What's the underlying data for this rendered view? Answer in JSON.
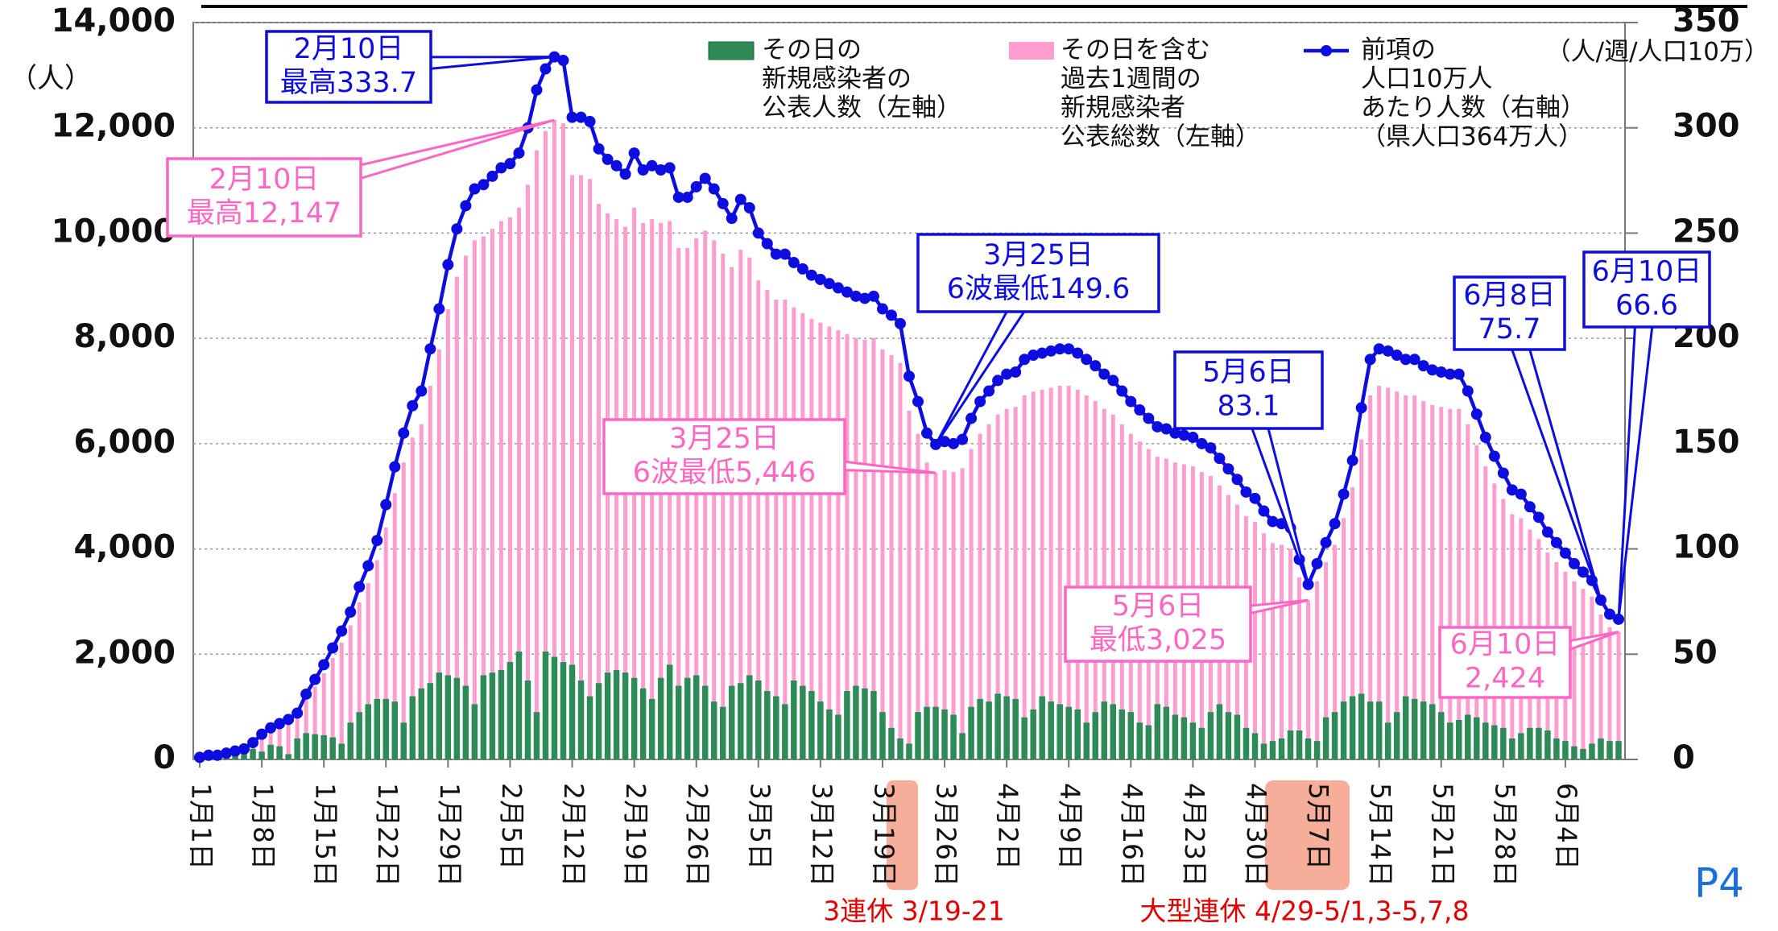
{
  "chart_data": {
    "type": "combo",
    "ylabel": "（人）",
    "y2label": "（人/週/人口10万）",
    "ylim": [
      0,
      14000
    ],
    "yticks": [
      0,
      {
        "value": 2000,
        "label": "2,000"
      },
      {
        "value": 4000,
        "label": "4,000"
      },
      {
        "value": 6000,
        "label": "6,000"
      },
      {
        "value": 8000,
        "label": "8,000"
      },
      {
        "value": 10000,
        "label": "10,000"
      },
      {
        "value": 12000,
        "label": "12,000"
      },
      {
        "value": 14000,
        "label": "14,000"
      }
    ],
    "y2lim": [
      0,
      350
    ],
    "y2ticks": [
      0,
      50,
      100,
      150,
      200,
      250,
      300,
      350
    ],
    "grid": true,
    "categories": [
      "1月1日",
      null,
      null,
      null,
      null,
      null,
      null,
      "1月8日",
      null,
      null,
      null,
      null,
      null,
      null,
      "1月15日",
      null,
      null,
      null,
      null,
      null,
      null,
      "1月22日",
      null,
      null,
      null,
      null,
      null,
      null,
      "1月29日",
      null,
      null,
      null,
      null,
      null,
      null,
      "2月5日",
      null,
      null,
      null,
      null,
      null,
      null,
      "2月12日",
      null,
      null,
      null,
      null,
      null,
      null,
      "2月19日",
      null,
      null,
      null,
      null,
      null,
      null,
      "2月26日",
      null,
      null,
      null,
      null,
      null,
      null,
      "3月5日",
      null,
      null,
      null,
      null,
      null,
      null,
      "3月12日",
      null,
      null,
      null,
      null,
      null,
      null,
      "3月19日",
      null,
      null,
      null,
      null,
      null,
      null,
      "3月26日",
      null,
      null,
      null,
      null,
      null,
      null,
      "4月2日",
      null,
      null,
      null,
      null,
      null,
      null,
      "4月9日",
      null,
      null,
      null,
      null,
      null,
      null,
      "4月16日",
      null,
      null,
      null,
      null,
      null,
      null,
      "4月23日",
      null,
      null,
      null,
      null,
      null,
      null,
      "4月30日",
      null,
      null,
      null,
      null,
      null,
      null,
      "5月7日",
      null,
      null,
      null,
      null,
      null,
      null,
      "5月14日",
      null,
      null,
      null,
      null,
      null,
      null,
      "5月21日",
      null,
      null,
      null,
      null,
      null,
      null,
      "5月28日",
      null,
      null,
      null,
      null,
      null,
      null,
      "6月4日",
      null,
      null,
      null,
      null,
      null,
      null
    ],
    "series": [
      {
        "name": [
          "その日の",
          "新規感染者の",
          "公表人数（左軸）"
        ],
        "type": "bar",
        "color": "#2e8b57",
        "values": [
          30,
          60,
          90,
          120,
          100,
          150,
          200,
          150,
          280,
          250,
          100,
          400,
          500,
          480,
          460,
          420,
          300,
          700,
          900,
          1050,
          1150,
          1150,
          1100,
          700,
          1200,
          1350,
          1450,
          1650,
          1600,
          1550,
          1400,
          1050,
          1600,
          1650,
          1700,
          1850,
          2050,
          1500,
          900,
          2050,
          1950,
          1850,
          1800,
          1500,
          1200,
          1450,
          1650,
          1700,
          1650,
          1550,
          1350,
          1150,
          1550,
          1800,
          1400,
          1550,
          1600,
          1400,
          1100,
          1000,
          1400,
          1450,
          1600,
          1500,
          1300,
          1200,
          1050,
          1500,
          1400,
          1300,
          1100,
          950,
          850,
          1300,
          1400,
          1350,
          1300,
          900,
          600,
          400,
          300,
          900,
          1000,
          1000,
          950,
          850,
          500,
          1000,
          1150,
          1100,
          1250,
          1200,
          1150,
          800,
          950,
          1200,
          1100,
          1050,
          1000,
          950,
          700,
          900,
          1100,
          1050,
          950,
          900,
          700,
          650,
          1050,
          1000,
          850,
          800,
          700,
          600,
          900,
          1050,
          900,
          850,
          600,
          500,
          300,
          350,
          400,
          550,
          550,
          400,
          350,
          800,
          900,
          1100,
          1200,
          1250,
          1100,
          1100,
          700,
          900,
          1200,
          1150,
          1100,
          1050,
          900,
          700,
          750,
          850,
          800,
          700,
          650,
          600,
          400,
          500,
          600,
          600,
          550,
          400,
          350,
          250,
          200,
          300,
          400,
          350,
          350
        ]
      },
      {
        "name": [
          "その日を含む",
          "過去1週間の",
          "新規感染者",
          "公表総数（左軸）"
        ],
        "type": "bar",
        "color": "#ff9dd0",
        "values": [
          36,
          73,
          73,
          109,
          146,
          182,
          291,
          437,
          546,
          619,
          692,
          801,
          1128,
          1383,
          1638,
          1929,
          2220,
          2548,
          2985,
          3349,
          3786,
          4404,
          5060,
          5642,
          6115,
          6370,
          7098,
          7790,
          8554,
          9173,
          9573,
          9864,
          9937,
          10083,
          10228,
          10301,
          10483,
          10920,
          11575,
          11939,
          12147,
          12085,
          11102,
          11102,
          11029,
          10556,
          10374,
          10265,
          10119,
          10483,
          10192,
          10265,
          10192,
          10228,
          9719,
          9719,
          9901,
          10046,
          9864,
          9610,
          9355,
          9682,
          9537,
          9100,
          8918,
          8736,
          8736,
          8590,
          8481,
          8372,
          8299,
          8226,
          8154,
          8081,
          8008,
          7972,
          8008,
          7790,
          7680,
          7535,
          6625,
          6188,
          5642,
          5446,
          5496,
          5460,
          5533,
          5897,
          6188,
          6370,
          6552,
          6661,
          6698,
          6916,
          6989,
          7025,
          7062,
          7098,
          7098,
          7025,
          6916,
          6807,
          6661,
          6552,
          6370,
          6188,
          6042,
          5897,
          5751,
          5715,
          5642,
          5606,
          5569,
          5460,
          5387,
          5205,
          5023,
          4841,
          4623,
          4514,
          4295,
          4113,
          4077,
          4004,
          3458,
          3025,
          3385,
          3749,
          4077,
          4586,
          5169,
          6079,
          6916,
          7098,
          7062,
          6989,
          6916,
          6916,
          6807,
          6734,
          6698,
          6661,
          6661,
          6370,
          5970,
          5569,
          5242,
          4950,
          4659,
          4586,
          4368,
          4186,
          3931,
          3749,
          3567,
          3385,
          3240,
          3094,
          2755,
          2512,
          2424
        ]
      },
      {
        "name": [
          "前項の",
          "人口10万人",
          "あたり人数（右軸）",
          "（県人口364万人）"
        ],
        "type": "line",
        "axis": "y2",
        "color": "#0d0de0",
        "values": [
          1,
          2,
          2,
          3,
          4,
          5,
          8,
          12,
          15,
          17,
          19,
          22,
          31,
          38,
          45,
          53,
          61,
          70,
          82,
          92,
          104,
          121,
          139,
          155,
          168,
          175,
          195,
          214,
          235,
          252,
          263,
          271,
          273,
          277,
          281,
          283,
          288,
          300,
          318,
          328,
          333.7,
          332,
          305,
          305,
          303,
          290,
          285,
          282,
          278,
          288,
          280,
          282,
          280,
          281,
          267,
          267,
          272,
          276,
          271,
          264,
          257,
          266,
          262,
          250,
          245,
          240,
          240,
          236,
          233,
          230,
          228,
          226,
          224,
          222,
          220,
          219,
          220,
          214,
          211,
          207,
          182,
          170,
          155,
          149.6,
          151,
          150,
          152,
          162,
          170,
          175,
          180,
          183,
          184,
          190,
          192,
          193,
          194,
          195,
          195,
          193,
          190,
          187,
          183,
          180,
          175,
          170,
          166,
          162,
          158,
          157,
          155,
          154,
          153,
          150,
          148,
          143,
          138,
          133,
          127,
          124,
          118,
          113,
          112,
          110,
          95,
          83.1,
          93,
          103,
          112,
          126,
          142,
          167,
          190,
          195,
          194,
          192,
          190,
          190,
          187,
          185,
          184,
          183,
          183,
          175,
          164,
          153,
          144,
          136,
          128,
          126,
          120,
          115,
          108,
          103,
          98,
          93,
          89,
          85,
          75.7,
          69,
          66.6
        ]
      }
    ],
    "annotations": [
      {
        "lines": [
          "2月10日",
          "最高333.7"
        ],
        "color": "#0d0de0"
      },
      {
        "lines": [
          "2月10日",
          "最高12,147"
        ],
        "color": "#ff66c4"
      },
      {
        "lines": [
          "3月25日",
          "6波最低149.6"
        ],
        "color": "#0d0de0"
      },
      {
        "lines": [
          "3月25日",
          "6波最低5,446"
        ],
        "color": "#ff66c4"
      },
      {
        "lines": [
          "5月6日",
          "83.1"
        ],
        "color": "#0d0de0"
      },
      {
        "lines": [
          "5月6日",
          "最低3,025"
        ],
        "color": "#ff66c4"
      },
      {
        "lines": [
          "6月8日",
          "75.7"
        ],
        "color": "#0d0de0"
      },
      {
        "lines": [
          "6月10日",
          "66.6"
        ],
        "color": "#0d0de0"
      },
      {
        "lines": [
          "6月10日",
          "2,424"
        ],
        "color": "#ff66c4"
      }
    ],
    "notes": [
      "3連休 3/19-21",
      "大型連休 4/29-5/1,3-5,7,8"
    ],
    "page_label": "P4"
  }
}
